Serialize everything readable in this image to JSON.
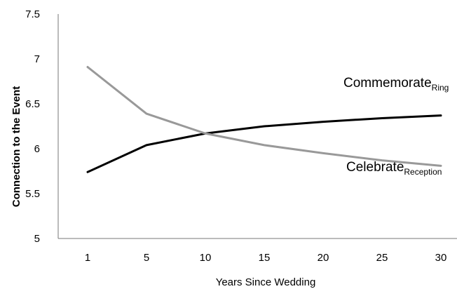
{
  "chart_data": {
    "type": "line",
    "title": "",
    "xlabel": "Years Since Wedding",
    "ylabel": "Connection to the Event",
    "x": [
      1,
      5,
      10,
      15,
      20,
      25,
      30
    ],
    "x_tick_labels": [
      "1",
      "5",
      "10",
      "15",
      "20",
      "25",
      "30"
    ],
    "ylim": [
      5,
      7.5
    ],
    "y_ticks": [
      5,
      5.5,
      6,
      6.5,
      7,
      7.5
    ],
    "y_tick_labels": [
      "5",
      "5.5",
      "6",
      "6.5",
      "7",
      "7.5"
    ],
    "grid": false,
    "series": [
      {
        "label_main": "Commemorate",
        "label_sub": "Ring",
        "color": "#000000",
        "values": [
          5.74,
          6.04,
          6.17,
          6.25,
          6.3,
          6.34,
          6.37
        ]
      },
      {
        "label_main": "Celebrate",
        "label_sub": "Reception",
        "color": "#999999",
        "values": [
          6.91,
          6.39,
          6.17,
          6.04,
          5.95,
          5.87,
          5.81
        ]
      }
    ]
  }
}
